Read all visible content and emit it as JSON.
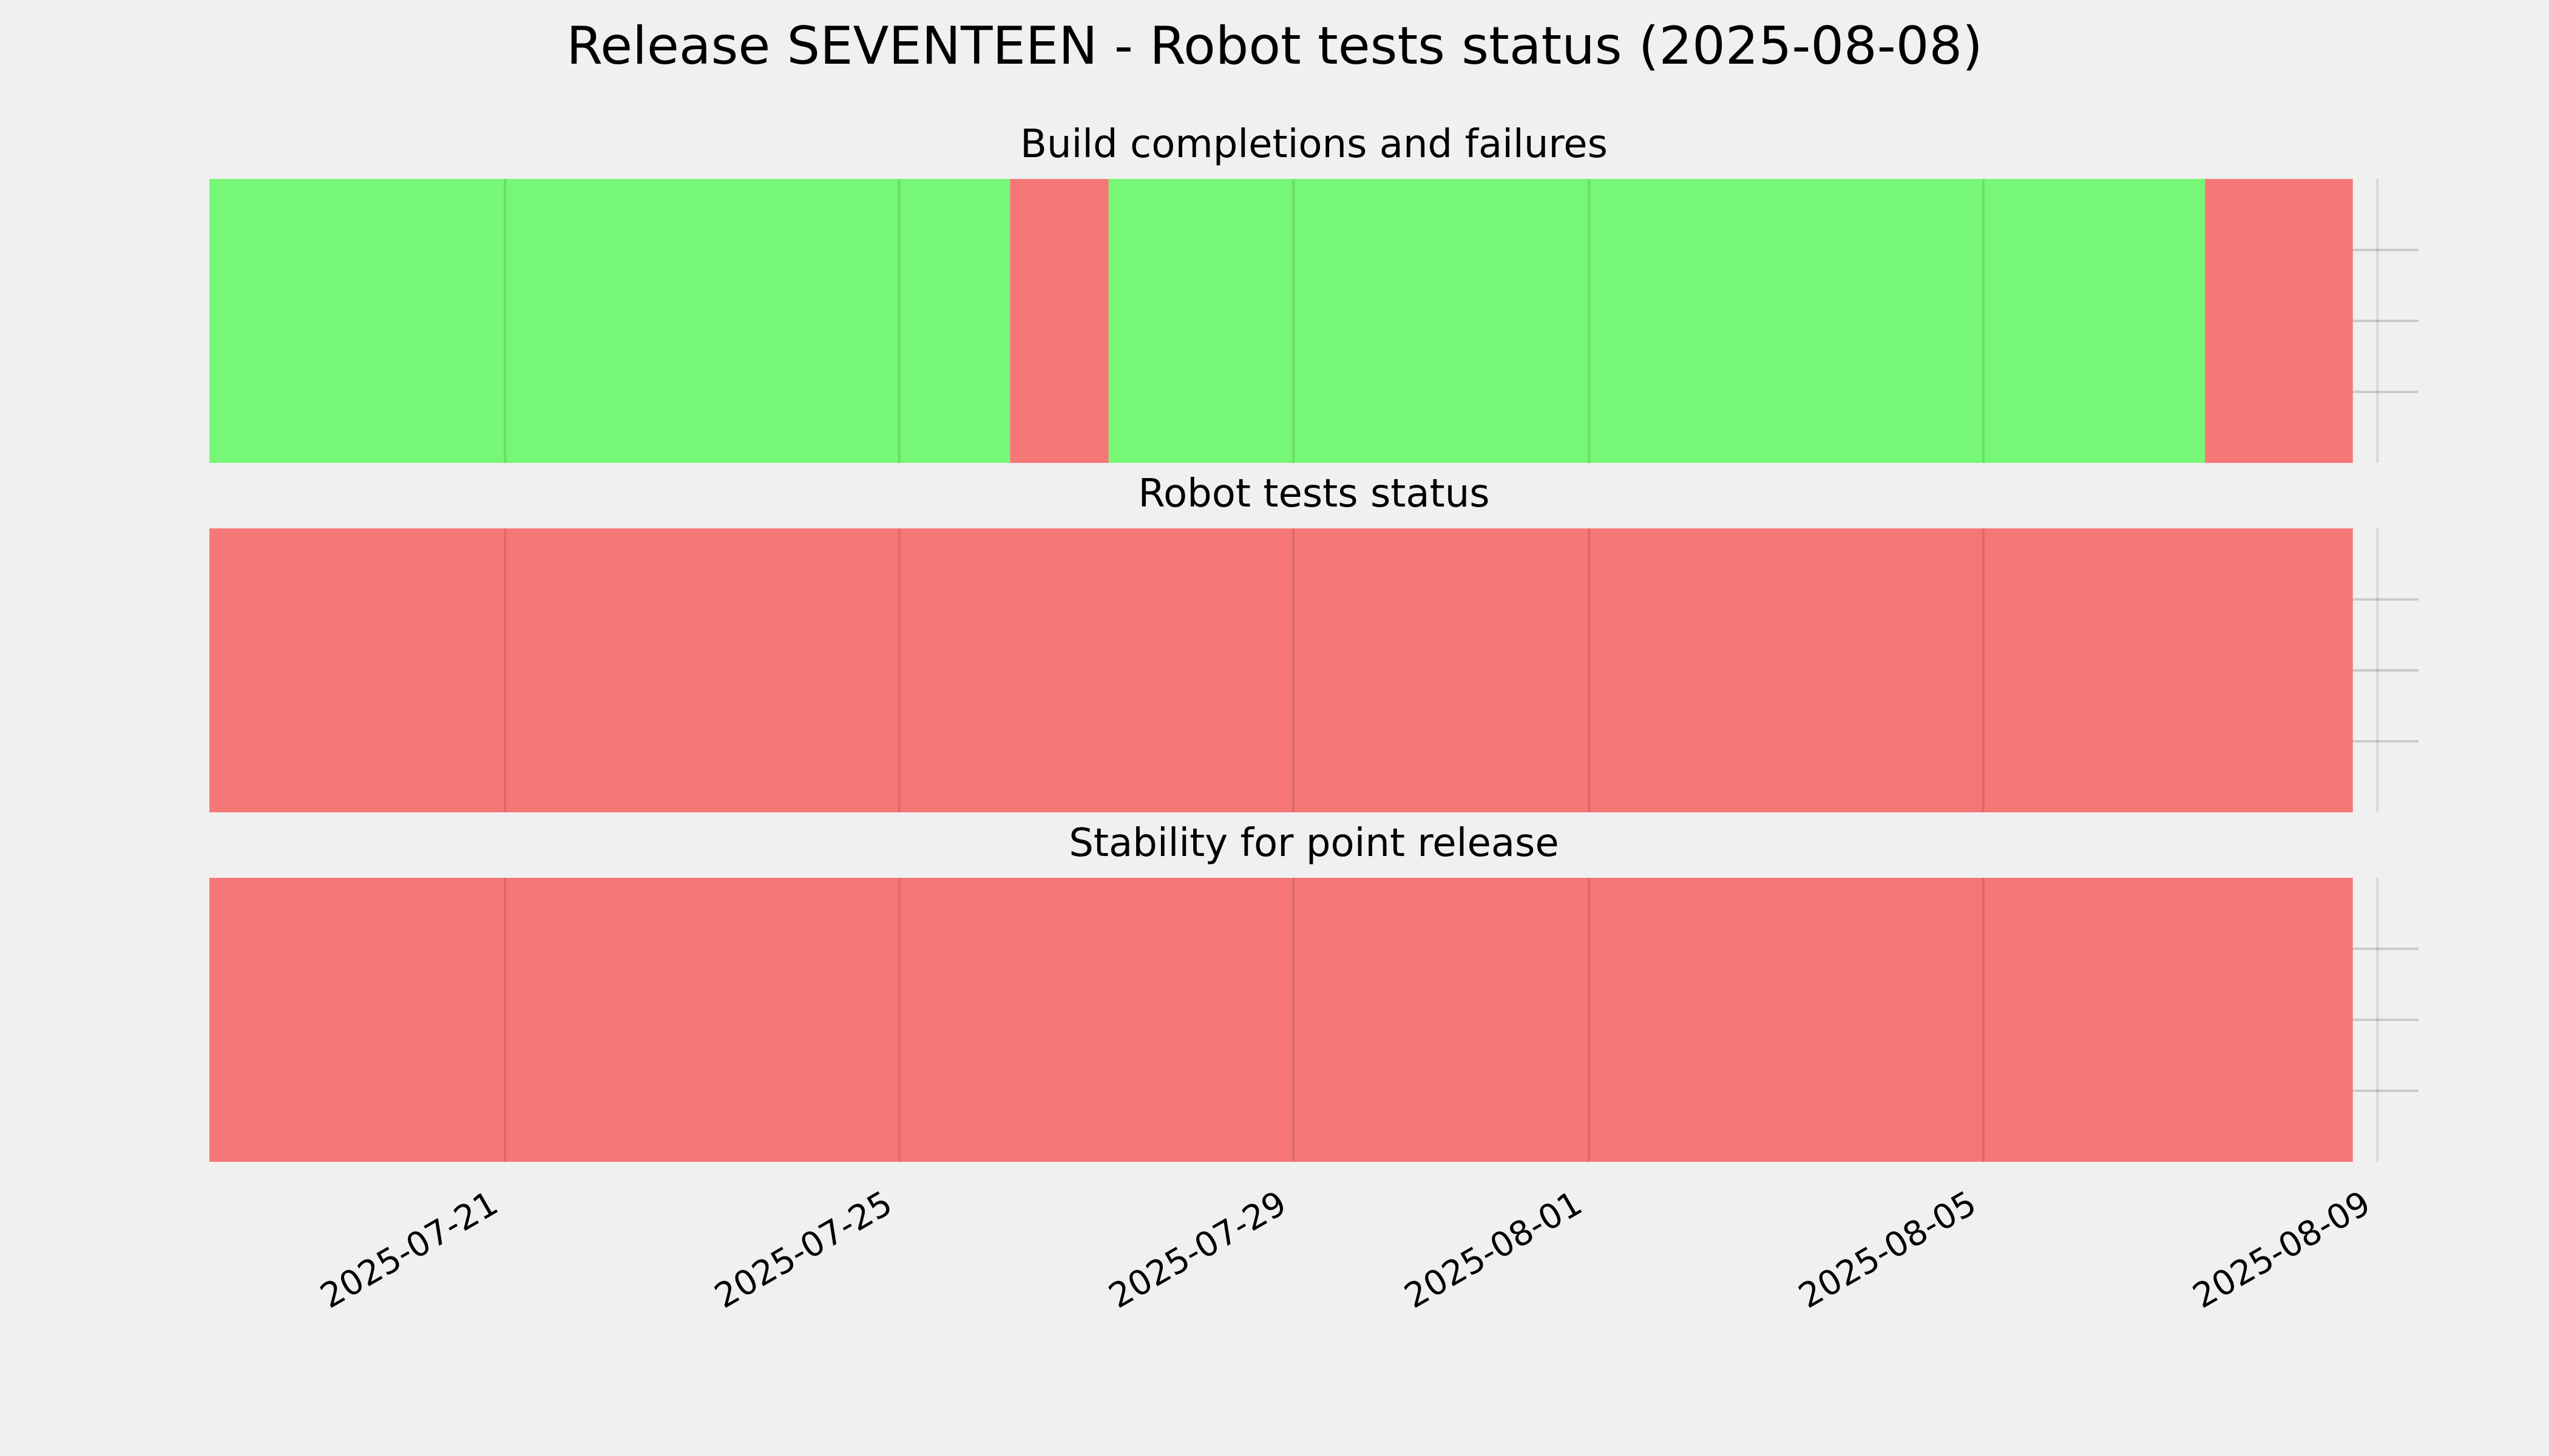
{
  "figure_title": "Release SEVENTEEN - Robot tests status (2025-08-08)",
  "colors": {
    "background": "#f0f0f0",
    "ok": "#76f776",
    "fail": "#f77776",
    "grid": "#cbcbcb"
  },
  "chart_data": {
    "type": "timeline",
    "x_axis": {
      "type": "date",
      "range": [
        "2025-07-18",
        "2025-08-09T10:00"
      ],
      "tick_labels": [
        "2025-07-21",
        "2025-07-25",
        "2025-07-29",
        "2025-08-01",
        "2025-08-05",
        "2025-08-09"
      ],
      "tick_label_rotation_deg": 30
    },
    "y_axis": {
      "tick_labels_visible": false,
      "gridlines": 3
    },
    "grid": true,
    "panels": [
      {
        "title": "Build completions and failures",
        "segments": [
          {
            "start": "2025-07-18",
            "end": "2025-07-26T03:00",
            "status": "ok"
          },
          {
            "start": "2025-07-26T03:00",
            "end": "2025-07-27T03:00",
            "status": "fail"
          },
          {
            "start": "2025-07-27T03:00",
            "end": "2025-08-07T06:00",
            "status": "ok"
          },
          {
            "start": "2025-08-07T06:00",
            "end": "2025-08-08T18:00",
            "status": "fail"
          }
        ]
      },
      {
        "title": "Robot tests status",
        "segments": [
          {
            "start": "2025-07-18",
            "end": "2025-08-08T18:00",
            "status": "fail"
          }
        ]
      },
      {
        "title": "Stability for point release",
        "segments": [
          {
            "start": "2025-07-18",
            "end": "2025-08-08T18:00",
            "status": "fail"
          }
        ]
      }
    ]
  }
}
